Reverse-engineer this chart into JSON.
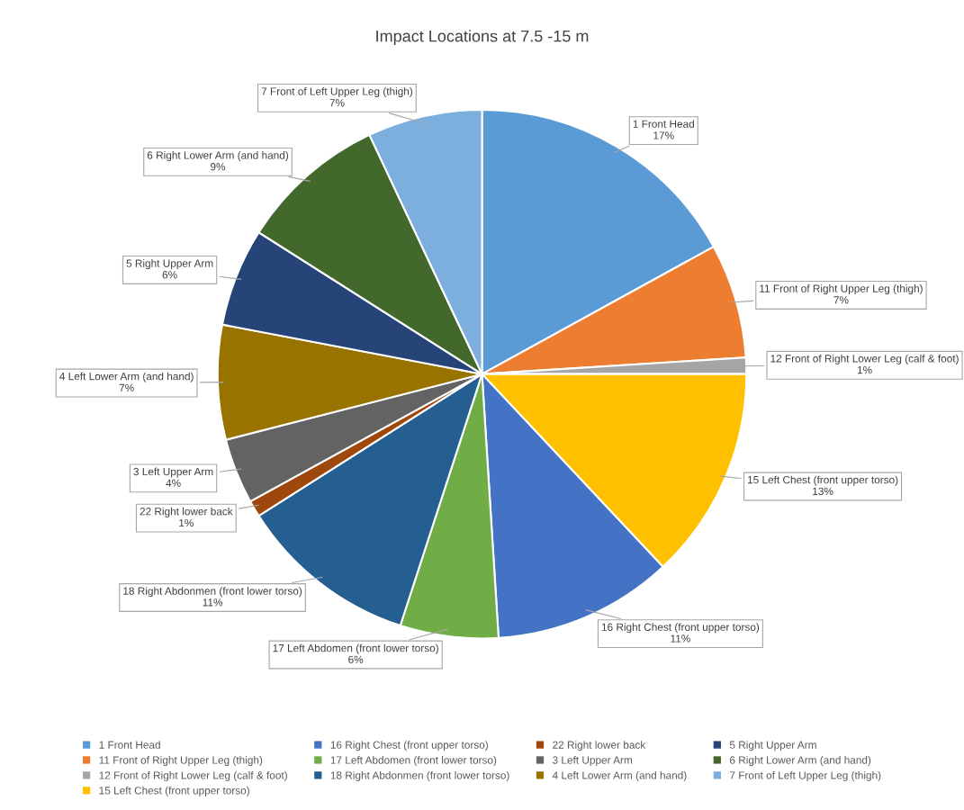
{
  "chart_data": {
    "type": "pie",
    "title": "Impact Locations at 7.5 -15 m",
    "categories": [
      "1 Front Head",
      "11 Front of Right Upper Leg (thigh)",
      "12 Front of Right Lower Leg (calf & foot)",
      "15 Left Chest (front upper torso)",
      "16 Right Chest (front upper torso)",
      "17 Left Abdomen (front lower torso)",
      "18 Right Abdonmen (front lower torso)",
      "22 Right lower back",
      "3 Left Upper Arm",
      "4 Left Lower Arm (and hand)",
      "5 Right Upper Arm",
      "6 Right Lower Arm (and hand)",
      "7 Front of Left Upper Leg (thigh)"
    ],
    "values": [
      17,
      7,
      1,
      13,
      11,
      6,
      11,
      1,
      4,
      7,
      6,
      9,
      7
    ],
    "value_labels": [
      "17%",
      "7%",
      "1%",
      "13%",
      "11%",
      "6%",
      "11%",
      "1%",
      "4%",
      "7%",
      "6%",
      "9%",
      "7%"
    ],
    "colors": [
      "#5b9bd5",
      "#ed7d31",
      "#a5a5a5",
      "#ffc000",
      "#4472c4",
      "#70ad47",
      "#255e91",
      "#9e480e",
      "#636363",
      "#997300",
      "#264478",
      "#43682b",
      "#7cafdd"
    ],
    "legend": "bottom"
  }
}
